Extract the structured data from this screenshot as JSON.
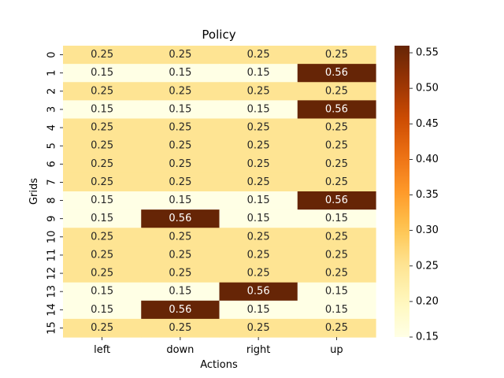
{
  "chart_data": {
    "type": "heatmap",
    "title": "Policy",
    "xlabel": "Actions",
    "ylabel": "Grids",
    "x_categories": [
      "left",
      "down",
      "right",
      "up"
    ],
    "y_categories": [
      "0",
      "1",
      "2",
      "3",
      "4",
      "5",
      "6",
      "7",
      "8",
      "9",
      "10",
      "11",
      "12",
      "13",
      "14",
      "15"
    ],
    "values": [
      [
        0.25,
        0.25,
        0.25,
        0.25
      ],
      [
        0.15,
        0.15,
        0.15,
        0.56
      ],
      [
        0.25,
        0.25,
        0.25,
        0.25
      ],
      [
        0.15,
        0.15,
        0.15,
        0.56
      ],
      [
        0.25,
        0.25,
        0.25,
        0.25
      ],
      [
        0.25,
        0.25,
        0.25,
        0.25
      ],
      [
        0.25,
        0.25,
        0.25,
        0.25
      ],
      [
        0.25,
        0.25,
        0.25,
        0.25
      ],
      [
        0.15,
        0.15,
        0.15,
        0.56
      ],
      [
        0.15,
        0.56,
        0.15,
        0.15
      ],
      [
        0.25,
        0.25,
        0.25,
        0.25
      ],
      [
        0.25,
        0.25,
        0.25,
        0.25
      ],
      [
        0.25,
        0.25,
        0.25,
        0.25
      ],
      [
        0.15,
        0.15,
        0.56,
        0.15
      ],
      [
        0.15,
        0.56,
        0.15,
        0.15
      ],
      [
        0.25,
        0.25,
        0.25,
        0.25
      ]
    ],
    "value_format": "0.00",
    "colormap": "YlOrBr",
    "colorbar": {
      "range": [
        0.15,
        0.56
      ],
      "ticks": [
        0.15,
        0.2,
        0.25,
        0.3,
        0.35,
        0.4,
        0.45,
        0.5,
        0.55
      ],
      "tick_labels": [
        "0.15",
        "0.20",
        "0.25",
        "0.30",
        "0.35",
        "0.40",
        "0.45",
        "0.50",
        "0.55"
      ]
    },
    "annotation_colors": {
      "light": "#ffffff",
      "dark": "#262626"
    }
  }
}
